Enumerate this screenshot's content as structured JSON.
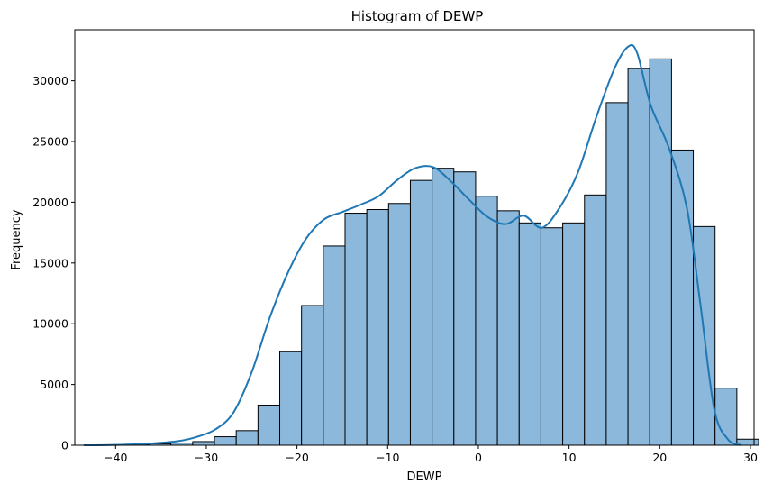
{
  "chart_data": {
    "type": "bar",
    "title": "Histogram of DEWP",
    "xlabel": "DEWP",
    "ylabel": "Frequency",
    "xlim": [
      -44.5,
      30.4
    ],
    "ylim": [
      0,
      34200
    ],
    "xticks": [
      -40,
      -30,
      -20,
      -10,
      0,
      10,
      20,
      30
    ],
    "yticks": [
      0,
      5000,
      10000,
      15000,
      20000,
      25000,
      30000
    ],
    "bin_start": -43.5,
    "bin_width": 2.4,
    "counts": [
      15,
      40,
      60,
      120,
      180,
      300,
      700,
      1200,
      3300,
      7700,
      11500,
      16400,
      19100,
      19400,
      19900,
      21800,
      22800,
      22500,
      20500,
      19300,
      18300,
      17900,
      18300,
      20600,
      28200,
      31000,
      31800,
      24300,
      18000,
      4700,
      500
    ],
    "kde": {
      "x": [
        -43.5,
        -40,
        -36,
        -33,
        -31,
        -29,
        -27,
        -25,
        -23,
        -21,
        -19,
        -17,
        -15,
        -13,
        -11,
        -9,
        -7,
        -5,
        -3,
        -1,
        1,
        3,
        5,
        7,
        9,
        11,
        13,
        15,
        16.5,
        17.5,
        19,
        21,
        23,
        24.5,
        26,
        27.5,
        29
      ],
      "y": [
        0,
        30,
        150,
        350,
        700,
        1300,
        2700,
        6000,
        10500,
        14200,
        17000,
        18600,
        19200,
        19800,
        20500,
        21800,
        22800,
        22900,
        21700,
        20200,
        18800,
        18200,
        18900,
        17900,
        19600,
        22500,
        27000,
        31000,
        32800,
        32300,
        28000,
        24500,
        19500,
        11500,
        3000,
        500,
        0
      ]
    },
    "grid": false,
    "colors": {
      "bar_fill": "#8cb8db",
      "bar_edge": "#000000",
      "kde_line": "#1f77b4"
    }
  }
}
